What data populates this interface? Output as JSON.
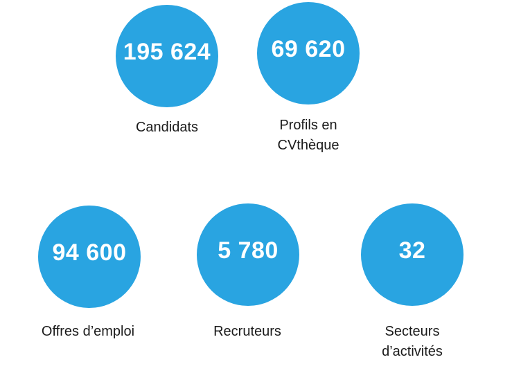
{
  "accent_color": "#29a4e1",
  "stats": [
    {
      "value": "195 624",
      "label_lines": [
        "Candidats"
      ]
    },
    {
      "value": "69 620",
      "label_lines": [
        "Profils en",
        "CVthèque"
      ]
    },
    {
      "value": "94 600",
      "label_lines": [
        "Offres d’emploi"
      ]
    },
    {
      "value": "5 780",
      "label_lines": [
        "Recruteurs"
      ]
    },
    {
      "value": "32",
      "label_lines": [
        "Secteurs",
        "d’activités"
      ]
    }
  ]
}
